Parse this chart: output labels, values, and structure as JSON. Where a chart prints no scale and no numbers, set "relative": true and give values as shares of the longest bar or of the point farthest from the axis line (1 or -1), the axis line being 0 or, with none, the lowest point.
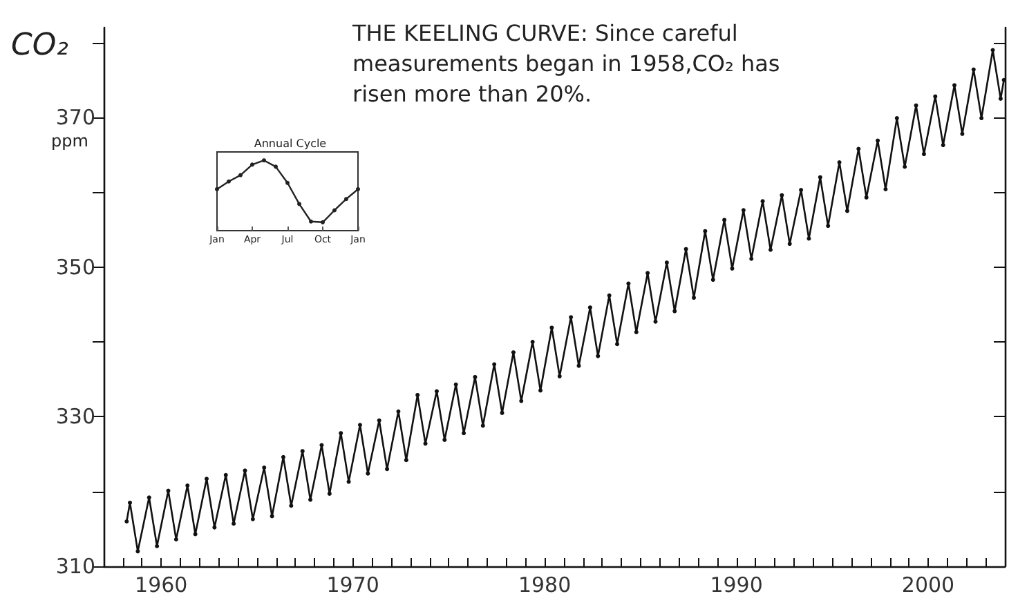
{
  "chart_data": [
    {
      "type": "line",
      "title": "THE KEELING CURVE: Since careful measurements began in 1958,CO₂ has risen more than 20%.",
      "ylabel": "CO₂",
      "annotations": [
        "ppm"
      ],
      "color": "#111111",
      "marker": "circle",
      "line_style": "solid",
      "x": [
        1958.2,
        1958.37,
        1958.78,
        1959.37,
        1959.78,
        1960.37,
        1960.78,
        1961.37,
        1961.78,
        1962.37,
        1962.78,
        1963.37,
        1963.78,
        1964.37,
        1964.78,
        1965.37,
        1965.78,
        1966.37,
        1966.78,
        1967.37,
        1967.78,
        1968.37,
        1968.78,
        1969.37,
        1969.78,
        1970.37,
        1970.78,
        1971.37,
        1971.78,
        1972.37,
        1972.78,
        1973.37,
        1973.78,
        1974.37,
        1974.78,
        1975.37,
        1975.78,
        1976.37,
        1976.78,
        1977.37,
        1977.78,
        1978.37,
        1978.78,
        1979.37,
        1979.78,
        1980.37,
        1980.78,
        1981.37,
        1981.78,
        1982.37,
        1982.78,
        1983.37,
        1983.78,
        1984.37,
        1984.78,
        1985.37,
        1985.78,
        1986.37,
        1986.78,
        1987.37,
        1987.78,
        1988.37,
        1988.78,
        1989.37,
        1989.78,
        1990.37,
        1990.78,
        1991.37,
        1991.78,
        1992.37,
        1992.78,
        1993.37,
        1993.78,
        1994.37,
        1994.78,
        1995.37,
        1995.78,
        1996.37,
        1996.78,
        1997.37,
        1997.78,
        1998.37,
        1998.78,
        1999.37,
        1999.78,
        2000.37,
        2000.78,
        2001.37,
        2001.78,
        2002.37,
        2002.78,
        2003.37,
        2003.78,
        2003.95
      ],
      "values": [
        316.0,
        318.5,
        312.0,
        319.2,
        312.7,
        320.1,
        313.6,
        320.8,
        314.3,
        321.7,
        315.2,
        322.2,
        315.7,
        322.8,
        316.3,
        323.2,
        316.7,
        324.6,
        318.1,
        325.4,
        318.9,
        326.2,
        319.7,
        327.8,
        321.3,
        328.9,
        322.4,
        329.5,
        323.0,
        330.7,
        324.2,
        332.9,
        326.4,
        333.4,
        326.9,
        334.3,
        327.8,
        335.3,
        328.8,
        337.0,
        330.5,
        338.6,
        332.1,
        340.0,
        333.5,
        341.9,
        335.4,
        343.3,
        336.8,
        344.6,
        338.1,
        346.2,
        339.7,
        347.8,
        341.3,
        349.2,
        342.7,
        350.6,
        344.1,
        352.4,
        345.9,
        354.8,
        348.3,
        356.3,
        349.8,
        357.6,
        351.1,
        358.8,
        352.3,
        359.6,
        353.1,
        360.3,
        353.8,
        362.0,
        355.5,
        364.0,
        357.5,
        365.8,
        359.3,
        366.9,
        360.4,
        369.9,
        363.4,
        371.6,
        365.1,
        372.8,
        366.3,
        374.3,
        367.8,
        376.4,
        369.9,
        379.0,
        372.5,
        375.0
      ],
      "xlim": [
        1957,
        2004
      ],
      "xticks": [
        {
          "value": 1957,
          "label": null
        },
        {
          "value": 1958,
          "label": null
        },
        {
          "value": 1959,
          "label": null
        },
        1960,
        {
          "value": 1961,
          "label": null
        },
        {
          "value": 1962,
          "label": null
        },
        {
          "value": 1963,
          "label": null
        },
        {
          "value": 1964,
          "label": null
        },
        {
          "value": 1965,
          "label": null
        },
        {
          "value": 1966,
          "label": null
        },
        {
          "value": 1967,
          "label": null
        },
        {
          "value": 1968,
          "label": null
        },
        {
          "value": 1969,
          "label": null
        },
        1970,
        {
          "value": 1971,
          "label": null
        },
        {
          "value": 1972,
          "label": null
        },
        {
          "value": 1973,
          "label": null
        },
        {
          "value": 1974,
          "label": null
        },
        {
          "value": 1975,
          "label": null
        },
        {
          "value": 1976,
          "label": null
        },
        {
          "value": 1977,
          "label": null
        },
        {
          "value": 1978,
          "label": null
        },
        {
          "value": 1979,
          "label": null
        },
        1980,
        {
          "value": 1981,
          "label": null
        },
        {
          "value": 1982,
          "label": null
        },
        {
          "value": 1983,
          "label": null
        },
        {
          "value": 1984,
          "label": null
        },
        {
          "value": 1985,
          "label": null
        },
        {
          "value": 1986,
          "label": null
        },
        {
          "value": 1987,
          "label": null
        },
        {
          "value": 1988,
          "label": null
        },
        {
          "value": 1989,
          "label": null
        },
        1990,
        {
          "value": 1991,
          "label": null
        },
        {
          "value": 1992,
          "label": null
        },
        {
          "value": 1993,
          "label": null
        },
        {
          "value": 1994,
          "label": null
        },
        {
          "value": 1995,
          "label": null
        },
        {
          "value": 1996,
          "label": null
        },
        {
          "value": 1997,
          "label": null
        },
        {
          "value": 1998,
          "label": null
        },
        {
          "value": 1999,
          "label": null
        },
        2000,
        {
          "value": 2001,
          "label": null
        },
        {
          "value": 2002,
          "label": null
        },
        {
          "value": 2003,
          "label": null
        }
      ],
      "ylim": [
        310,
        382
      ],
      "yticks": [
        310,
        {
          "value": 320,
          "label": null
        },
        330,
        {
          "value": 340,
          "label": null
        },
        350,
        {
          "value": 360,
          "label": null
        },
        370,
        {
          "value": 380,
          "label": null
        }
      ]
    },
    {
      "type": "line",
      "title": "Annual Cycle",
      "relative": true,
      "color": "#222222",
      "marker": "circle",
      "categories": [
        "Jan",
        null,
        null,
        "Apr",
        null,
        null,
        "Jul",
        null,
        null,
        "Oct",
        null,
        null,
        "Jan"
      ],
      "values": [
        0.59,
        0.7,
        0.79,
        0.94,
        1,
        0.91,
        0.68,
        0.38,
        0.13,
        0.12,
        0.29,
        0.45,
        0.59
      ]
    }
  ]
}
